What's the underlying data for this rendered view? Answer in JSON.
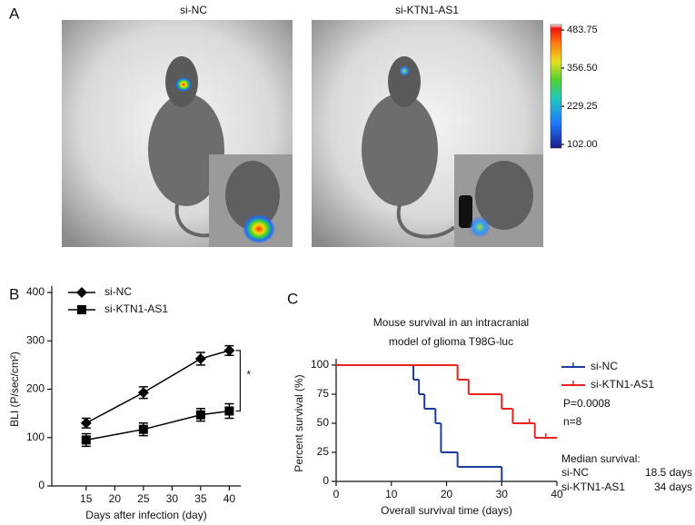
{
  "panel_a": {
    "label": "A",
    "images": [
      "si-NC",
      "si-KTN1-AS1"
    ],
    "colorbar": {
      "lim": [
        90,
        502
      ],
      "ticks": [
        {
          "value": 483.75,
          "label": "483.75"
        },
        {
          "value": 356.5,
          "label": "356.50"
        },
        229.25,
        {
          "value": 102,
          "label": "102.00"
        }
      ]
    }
  },
  "chart_data": [
    {
      "type": "line",
      "panel": "B",
      "xlabel": "Days after infection (day)",
      "ylabel": "BLI (P/sec/cm²)",
      "xlim": [
        9,
        42
      ],
      "xticks": [
        15,
        20,
        25,
        30,
        35,
        40
      ],
      "ylim": [
        0,
        400
      ],
      "yticks": [
        0,
        100,
        200,
        300,
        400
      ],
      "legend": "upper left",
      "x": [
        15,
        25,
        35,
        40
      ],
      "series": [
        {
          "name": "si-NC",
          "color": "#000000",
          "marker": "diamond",
          "values": [
            130,
            193,
            263,
            280
          ],
          "errors": [
            10,
            12,
            13,
            10
          ]
        },
        {
          "name": "si-KTN1-AS1",
          "color": "#000000",
          "marker": "square",
          "values": [
            95,
            117,
            147,
            155
          ],
          "errors": [
            13,
            13,
            13,
            15
          ]
        }
      ],
      "annotation": "*"
    },
    {
      "type": "line",
      "step": true,
      "panel": "C",
      "title": [
        "Mouse survival in an intracranial",
        "model of glioma T98G-luc"
      ],
      "xlabel": "Overall survival time (days)",
      "ylabel": "Percent survival (%)",
      "xlim": [
        0,
        40
      ],
      "xticks": [
        0,
        10,
        20,
        30,
        40
      ],
      "ylim": [
        0,
        100
      ],
      "yticks": [
        0,
        25,
        50,
        75,
        100
      ],
      "legend": "right",
      "series": [
        {
          "name": "si-NC",
          "color": "#1a3c9e",
          "x": [
            0,
            14,
            15,
            16,
            18,
            19,
            22,
            30
          ],
          "values": [
            100,
            87.5,
            75,
            62.5,
            50,
            25,
            12.5,
            0
          ]
        },
        {
          "name": "si-KTN1-AS1",
          "color": "#e8231d",
          "x": [
            0,
            22,
            24,
            30,
            32,
            36,
            40
          ],
          "values": [
            100,
            87.5,
            75,
            62.5,
            50,
            37.5,
            37.5
          ],
          "censor_x": [
            35,
            38
          ],
          "censor_values": [
            50,
            37.5
          ]
        }
      ],
      "annotations": {
        "p_value": "P=0.0008",
        "n": "n=8",
        "median_title": "Median survival:",
        "medians": [
          [
            "si-NC",
            "18.5 days"
          ],
          [
            "si-KTN1-AS1",
            "34 days"
          ]
        ]
      }
    }
  ]
}
